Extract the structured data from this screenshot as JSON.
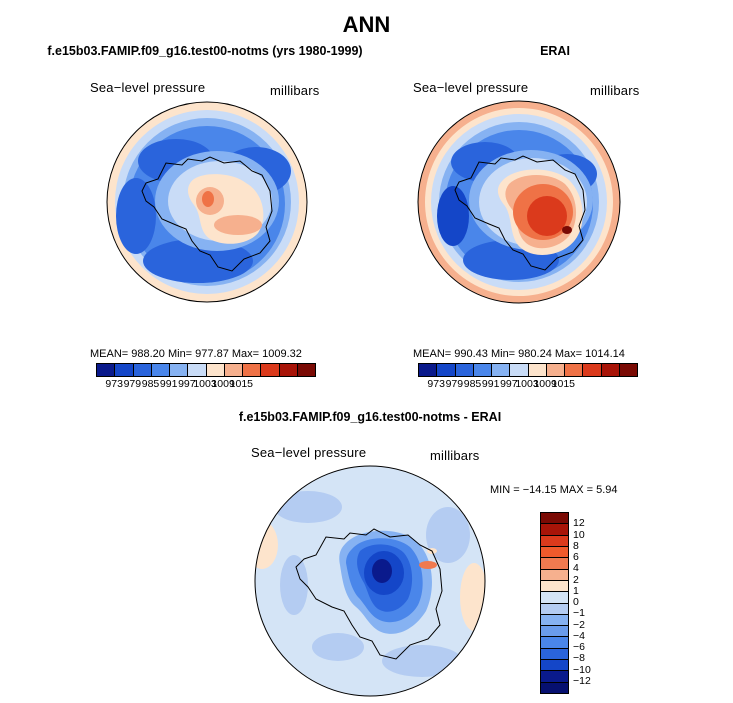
{
  "figure": {
    "title": "ANN"
  },
  "panels": [
    {
      "title": "f.e15b03.FAMIP.f09_g16.test00-notms (yrs 1980-1999)",
      "variable": "Sea−level pressure",
      "units": "millibars",
      "stats": "MEAN= 988.20   Min= 977.87   Max= 1009.32",
      "colorbar": {
        "colors": [
          "#0a1a8c",
          "#1446c8",
          "#2a64dc",
          "#4a86ea",
          "#86b2f2",
          "#c9dcf7",
          "#fde4cc",
          "#f6b08e",
          "#ef7246",
          "#db3a1c",
          "#a81408",
          "#7a0a04"
        ],
        "labels": [
          "973",
          "979",
          "985",
          "991",
          "997",
          "1003",
          "1009",
          "1015"
        ]
      }
    },
    {
      "title": "ERAI",
      "variable": "Sea−level pressure",
      "units": "millibars",
      "stats": "MEAN= 990.43   Min= 980.24   Max= 1014.14",
      "colorbar": {
        "colors": [
          "#0a1a8c",
          "#1446c8",
          "#2a64dc",
          "#4a86ea",
          "#86b2f2",
          "#c9dcf7",
          "#fde4cc",
          "#f6b08e",
          "#ef7246",
          "#db3a1c",
          "#a81408",
          "#7a0a04"
        ],
        "labels": [
          "973",
          "979",
          "985",
          "991",
          "997",
          "1003",
          "1009",
          "1015"
        ]
      }
    },
    {
      "title": "f.e15b03.FAMIP.f09_g16.test00-notms - ERAI",
      "variable": "Sea−level pressure",
      "units": "millibars",
      "stats": "MIN = −14.15  MAX =    5.94",
      "colorbar": {
        "colors": [
          "#7a0a04",
          "#a81408",
          "#db3a1c",
          "#ef5a2c",
          "#f07a50",
          "#f6b08e",
          "#fde4cc",
          "#d4e4f6",
          "#b4ccf2",
          "#86b2f2",
          "#6a9cec",
          "#4a86ea",
          "#2a64dc",
          "#1446c8",
          "#0a1a8c",
          "#061070"
        ],
        "labels": [
          "12",
          "10",
          "8",
          "6",
          "4",
          "2",
          "1",
          "0",
          "−1",
          "−2",
          "−4",
          "−6",
          "−8",
          "−10",
          "−12"
        ]
      }
    }
  ]
}
